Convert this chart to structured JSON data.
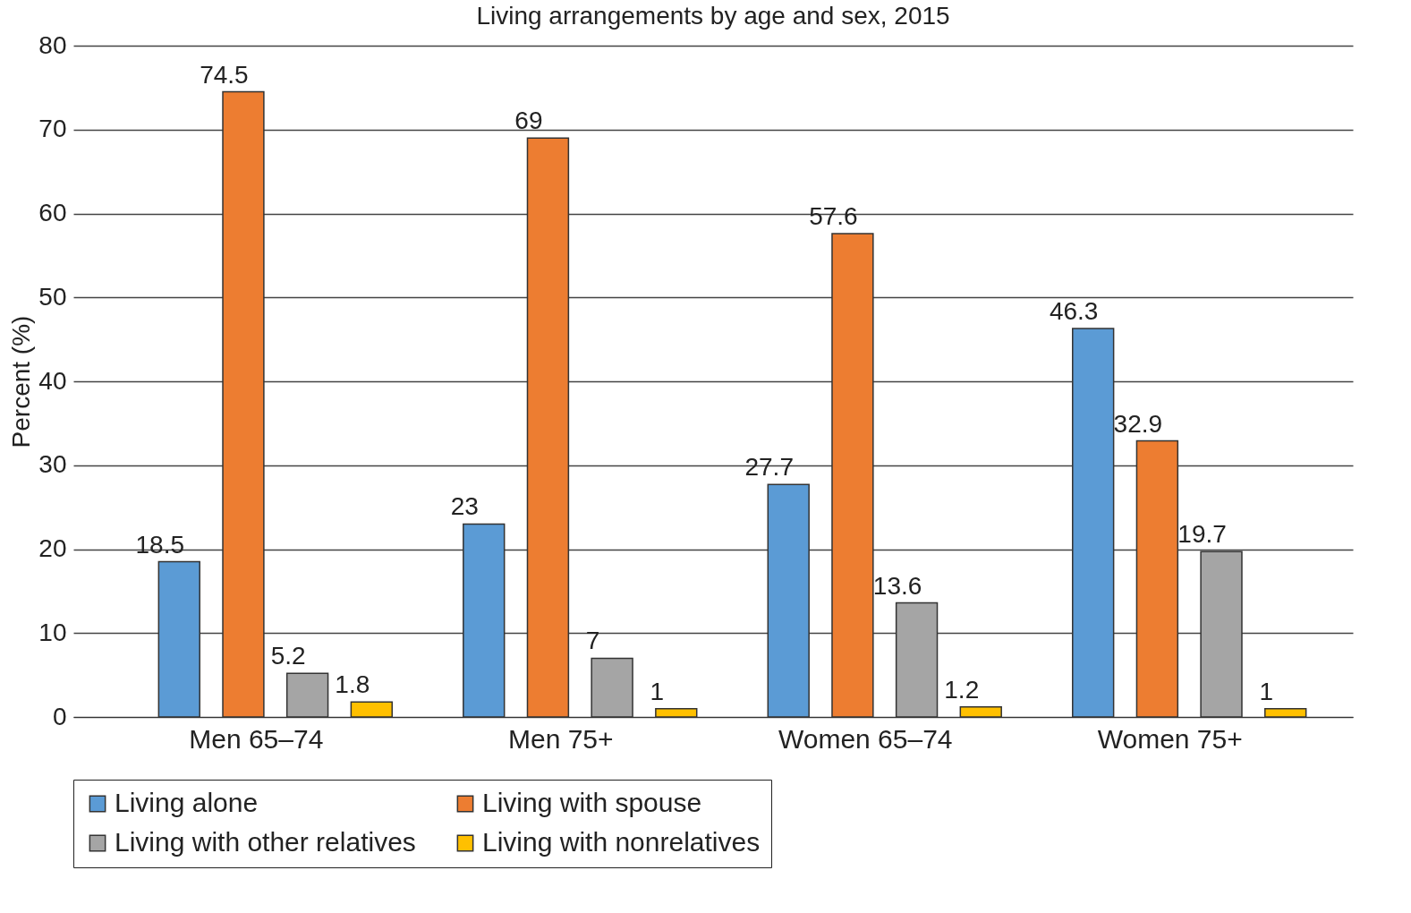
{
  "chart_data": {
    "type": "bar",
    "title": "Living arrangements by age and sex, 2015",
    "ylabel": "Percent (%)",
    "categories": [
      "Men 65–74",
      "Men 75+",
      "Women 65–74",
      "Women 75+"
    ],
    "series": [
      {
        "name": "Living alone",
        "color": "#5b9bd5",
        "values": [
          18.5,
          23,
          27.7,
          46.3
        ]
      },
      {
        "name": "Living with spouse",
        "color": "#ed7d31",
        "values": [
          74.5,
          69,
          57.6,
          32.9
        ]
      },
      {
        "name": "Living with other relatives",
        "color": "#a5a5a5",
        "values": [
          5.2,
          7,
          13.6,
          19.7
        ]
      },
      {
        "name": "Living with nonrelatives",
        "color": "#ffc000",
        "values": [
          1.8,
          1,
          1.2,
          1
        ]
      }
    ],
    "ylim": [
      0,
      80
    ],
    "yticks": [
      0,
      10,
      20,
      30,
      40,
      50,
      60,
      70,
      80
    ],
    "grid": "y",
    "legend": "bottom",
    "data_labels": true
  }
}
